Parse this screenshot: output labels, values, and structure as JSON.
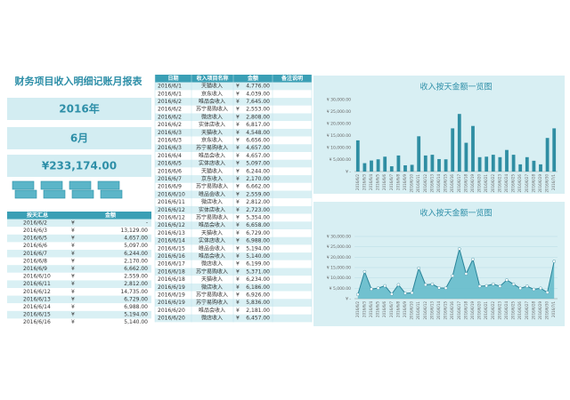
{
  "header": {
    "title": "财务项目收入明细记账月报表",
    "year": "2016年",
    "month": "6月",
    "total": "¥233,174.00",
    "currency": "¥"
  },
  "summary": {
    "columns": [
      "按天汇总",
      "金额"
    ],
    "rows": [
      [
        "2016/6/2",
        "-"
      ],
      [
        "2016/6/3",
        "13,129.00"
      ],
      [
        "2016/6/5",
        "4,657.00"
      ],
      [
        "2016/6/6",
        "5,097.00"
      ],
      [
        "2016/6/7",
        "6,244.00"
      ],
      [
        "2016/6/8",
        "2,170.00"
      ],
      [
        "2016/6/9",
        "6,662.00"
      ],
      [
        "2016/6/10",
        "2,559.00"
      ],
      [
        "2016/6/11",
        "2,812.00"
      ],
      [
        "2016/6/12",
        "14,735.00"
      ],
      [
        "2016/6/13",
        "6,729.00"
      ],
      [
        "2016/6/14",
        "6,988.00"
      ],
      [
        "2016/6/15",
        "5,194.00"
      ],
      [
        "2016/6/16",
        "5,140.00"
      ]
    ]
  },
  "table": {
    "columns": [
      "日期",
      "收入项目名称",
      "金额",
      "备注说明"
    ],
    "rows": [
      [
        "2016/6/1",
        "天猫收入",
        "4,776.00"
      ],
      [
        "2016/6/1",
        "京东收入",
        "4,039.00"
      ],
      [
        "2016/6/2",
        "唯品会收入",
        "7,645.00"
      ],
      [
        "2016/6/2",
        "苏宁易购收入",
        "2,553.00"
      ],
      [
        "2016/6/2",
        "微店收入",
        "2,808.00"
      ],
      [
        "2016/6/2",
        "实体店收入",
        "6,817.00"
      ],
      [
        "2016/6/3",
        "天猫收入",
        "4,548.00"
      ],
      [
        "2016/6/3",
        "京东收入",
        "6,656.00"
      ],
      [
        "2016/6/3",
        "苏宁易购收入",
        "4,657.00"
      ],
      [
        "2016/6/4",
        "唯品会收入",
        "4,657.00"
      ],
      [
        "2016/6/5",
        "实体店收入",
        "5,097.00"
      ],
      [
        "2016/6/6",
        "天猫收入",
        "6,244.00"
      ],
      [
        "2016/6/7",
        "京东收入",
        "2,170.00"
      ],
      [
        "2016/6/9",
        "苏宁易购收入",
        "6,662.00"
      ],
      [
        "2016/6/10",
        "唯品会收入",
        "2,559.00"
      ],
      [
        "2016/6/11",
        "微店收入",
        "2,812.00"
      ],
      [
        "2016/6/12",
        "实体店收入",
        "2,723.00"
      ],
      [
        "2016/6/12",
        "苏宁易购收入",
        "5,354.00"
      ],
      [
        "2016/6/12",
        "唯品会收入",
        "6,658.00"
      ],
      [
        "2016/6/13",
        "天猫收入",
        "6,729.00"
      ],
      [
        "2016/6/14",
        "实体店收入",
        "6,988.00"
      ],
      [
        "2016/6/15",
        "唯品会收入",
        "5,194.00"
      ],
      [
        "2016/6/16",
        "唯品会收入",
        "5,140.00"
      ],
      [
        "2016/6/17",
        "微店收入",
        "6,199.00"
      ],
      [
        "2016/6/18",
        "苏宁易购收入",
        "5,371.00"
      ],
      [
        "2016/6/18",
        "天猫收入",
        "6,234.00"
      ],
      [
        "2016/6/19",
        "微店收入",
        "6,186.00"
      ],
      [
        "2016/6/19",
        "苏宁易购收入",
        "6,926.00"
      ],
      [
        "2016/6/19",
        "苏宁易购收入",
        "5,836.00"
      ],
      [
        "2016/6/20",
        "唯品会收入",
        "2,181.00"
      ],
      [
        "2016/6/20",
        "微店收入",
        "6,457.00"
      ]
    ]
  },
  "chart_data": [
    {
      "type": "bar",
      "title": "收入按天金额一览图",
      "color": "#2f8ea3",
      "grid": false,
      "categories": [
        "2016/6/2",
        "2016/6/3",
        "2016/6/4",
        "2016/6/5",
        "2016/6/6",
        "2016/6/7",
        "2016/6/8",
        "2016/6/9",
        "2016/6/10",
        "2016/6/11",
        "2016/6/12",
        "2016/6/13",
        "2016/6/14",
        "2016/6/15",
        "2016/6/16",
        "2016/6/17",
        "2016/6/18",
        "2016/6/19",
        "2016/6/20",
        "2016/6/21",
        "2016/6/22",
        "2016/6/23",
        "2016/6/24",
        "2016/6/25",
        "2016/6/26",
        "2016/6/27",
        "2016/6/28",
        "2016/6/29",
        "2016/6/30",
        "2016/7/1"
      ],
      "values": [
        13000,
        3500,
        4600,
        5100,
        6200,
        2200,
        6700,
        2600,
        2800,
        14700,
        6700,
        7000,
        5200,
        5100,
        18000,
        24000,
        12000,
        19000,
        6000,
        6200,
        7000,
        6000,
        9000,
        7000,
        3000,
        6000,
        4500,
        3000,
        14000,
        18000
      ],
      "ylim": [
        0,
        30000
      ],
      "yticks": [
        {
          "value": 0,
          "label": "¥ -"
        },
        {
          "value": 5000,
          "label": "¥ 5,000.00"
        },
        {
          "value": 10000,
          "label": "¥ 10,000.00"
        },
        {
          "value": 15000,
          "label": "¥ 15,000.00"
        },
        {
          "value": 20000,
          "label": "¥ 20,000.00"
        },
        {
          "value": 25000,
          "label": "¥ 25,000.00"
        },
        {
          "value": 30000,
          "label": "¥ 30,000.00"
        }
      ]
    },
    {
      "type": "area",
      "title": "收入按天金额一览图",
      "color": "#5fb8c8",
      "grid": true,
      "categories": [
        "2016/6/2",
        "2016/6/3",
        "2016/6/4",
        "2016/6/5",
        "2016/6/6",
        "2016/6/7",
        "2016/6/8",
        "2016/6/9",
        "2016/6/10",
        "2016/6/11",
        "2016/6/12",
        "2016/6/13",
        "2016/6/14",
        "2016/6/15",
        "2016/6/16",
        "2016/6/17",
        "2016/6/18",
        "2016/6/19",
        "2016/6/20",
        "2016/6/21",
        "2016/6/22",
        "2016/6/23",
        "2016/6/24",
        "2016/6/25",
        "2016/6/26",
        "2016/6/27",
        "2016/6/28",
        "2016/6/29",
        "2016/6/30",
        "2016/7/1"
      ],
      "values": [
        2000,
        13000,
        4600,
        5100,
        6200,
        2200,
        6700,
        2600,
        2800,
        14700,
        6700,
        7000,
        5200,
        5100,
        11000,
        24000,
        12000,
        19000,
        6000,
        6200,
        7000,
        6000,
        9000,
        7000,
        5000,
        6000,
        4500,
        5000,
        3000,
        18000
      ],
      "ylim": [
        0,
        30000
      ],
      "yticks": [
        {
          "value": 0,
          "label": "¥ -"
        },
        {
          "value": 5000,
          "label": "¥ 5,000.00"
        },
        {
          "value": 10000,
          "label": "¥ 10,000.00"
        },
        {
          "value": 15000,
          "label": "¥ 15,000.00"
        },
        {
          "value": 20000,
          "label": "¥ 20,000.00"
        },
        {
          "value": 25000,
          "label": "¥ 25,000.00"
        },
        {
          "value": 30000,
          "label": "¥ 30,000.00"
        }
      ]
    }
  ]
}
